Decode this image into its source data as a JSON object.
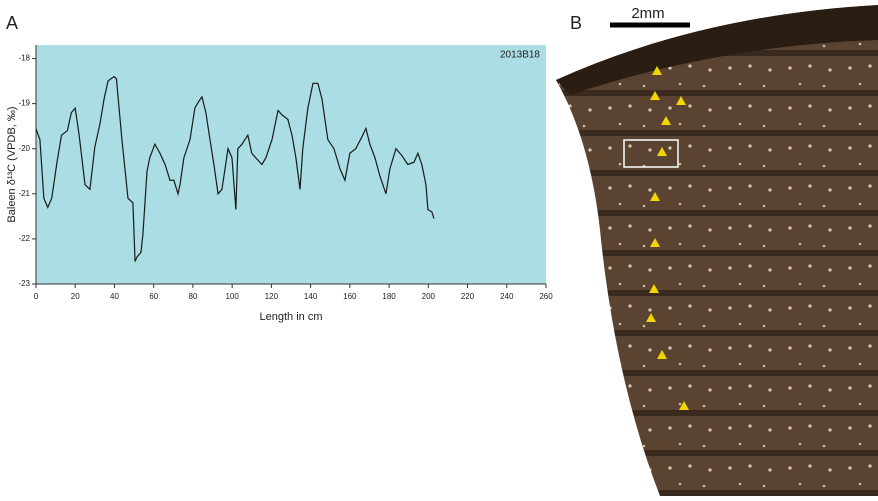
{
  "panel_labels": [
    "A",
    "B"
  ],
  "scale_bar": "2mm",
  "chart_data": {
    "type": "line",
    "annotation": "2013B18",
    "x_label": "Length in cm",
    "y_label": "Baleen δ¹³C (VPDB, ‰)",
    "x": [
      0,
      2,
      4,
      6,
      8,
      10.7,
      13,
      16,
      18,
      20,
      22,
      25,
      27.5,
      30,
      32.6,
      34.7,
      36.7,
      39.8,
      41,
      43.8,
      46.9,
      49.4,
      50.5,
      51.5,
      53.5,
      54.5,
      56.6,
      58,
      60.6,
      63.2,
      65.8,
      68.3,
      70.3,
      72.4,
      73.4,
      75.4,
      78.5,
      81,
      83,
      84.6,
      86.6,
      88.7,
      90.7,
      92.8,
      94.8,
      97.9,
      99.9,
      101.9,
      102.9,
      105,
      108,
      110,
      112,
      115.2,
      117.2,
      120.3,
      123.4,
      125.4,
      128.4,
      130.5,
      132.5,
      134.6,
      136,
      138.6,
      141.2,
      143.7,
      145.8,
      148.8,
      151.9,
      155,
      157.5,
      160,
      163,
      166,
      168.2,
      170.2,
      172.8,
      175.3,
      178.4,
      180.4,
      183.5,
      186.5,
      189.6,
      192.7,
      194.7,
      196.7,
      198.8,
      199.8,
      201.8,
      202.9
    ],
    "values": [
      -19.56,
      -19.8,
      -21.1,
      -21.3,
      -21.1,
      -20.3,
      -19.7,
      -19.6,
      -19.2,
      -19.1,
      -19.7,
      -20.8,
      -20.9,
      -19.96,
      -19.45,
      -18.9,
      -18.5,
      -18.4,
      -18.45,
      -19.8,
      -21.1,
      -21.2,
      -22.5,
      -22.4,
      -22.3,
      -21.9,
      -20.5,
      -20.2,
      -19.9,
      -20.1,
      -20.35,
      -20.7,
      -20.7,
      -21.0,
      -20.8,
      -20.2,
      -19.8,
      -19.1,
      -18.95,
      -18.85,
      -19.2,
      -19.8,
      -20.35,
      -21.0,
      -20.9,
      -20.0,
      -20.2,
      -21.35,
      -20.0,
      -19.9,
      -19.7,
      -20.1,
      -20.2,
      -20.35,
      -20.2,
      -19.8,
      -19.15,
      -19.25,
      -19.35,
      -19.7,
      -20.2,
      -20.9,
      -20.0,
      -19.1,
      -18.55,
      -18.55,
      -18.9,
      -19.8,
      -20.0,
      -20.45,
      -20.7,
      -20.1,
      -20.0,
      -19.75,
      -19.55,
      -19.9,
      -20.2,
      -20.6,
      -21.0,
      -20.45,
      -20.0,
      -20.15,
      -20.35,
      -20.3,
      -20.1,
      -20.35,
      -20.8,
      -21.35,
      -21.4,
      -21.55
    ],
    "color": "#1a1a1a",
    "background": "#aadde4",
    "xlim": [
      0,
      260
    ],
    "xticks": [
      0,
      20,
      40,
      60,
      80,
      100,
      120,
      140,
      160,
      180,
      200,
      220,
      240,
      260
    ],
    "ylim": [
      -23,
      -17.7
    ],
    "yticks": [
      -18,
      -19,
      -20,
      -21,
      -22,
      -23
    ]
  }
}
